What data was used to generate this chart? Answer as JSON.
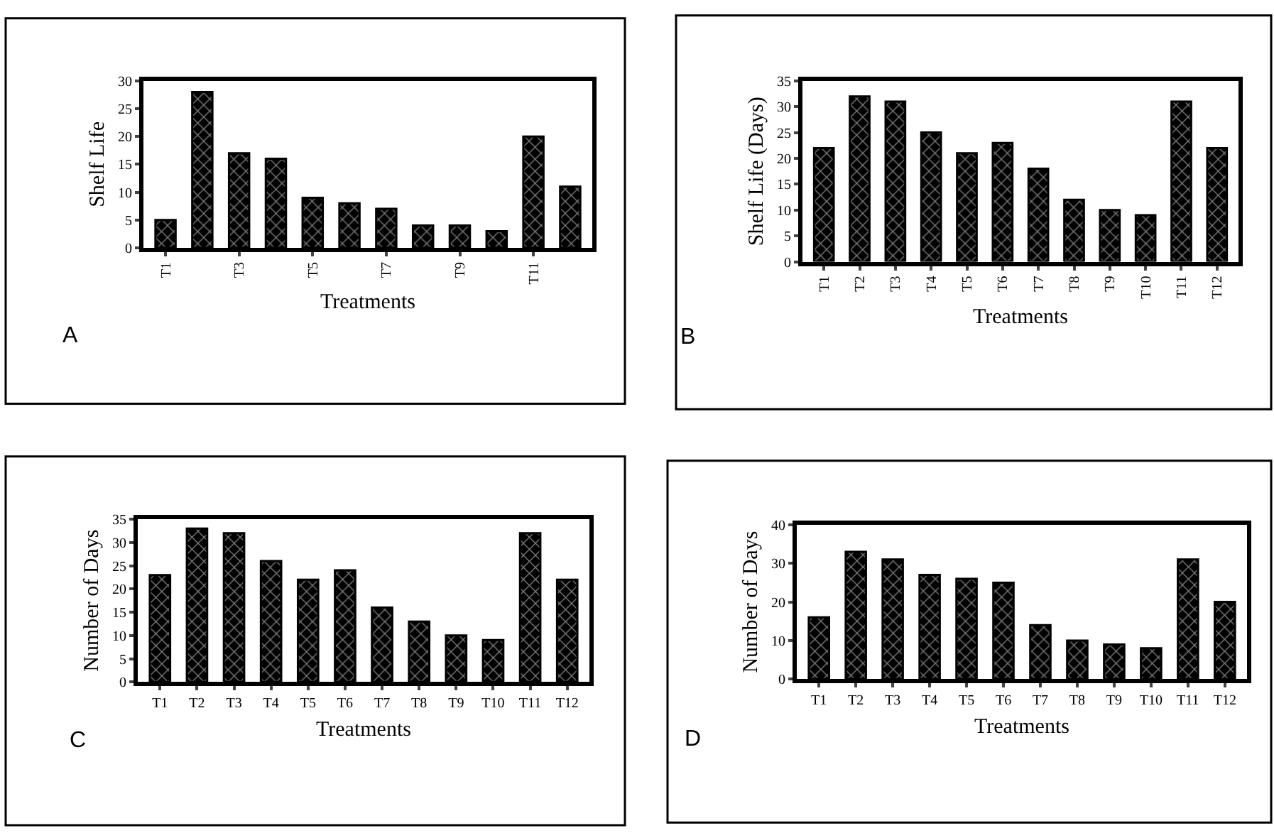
{
  "chart_data": [
    {
      "type": "bar",
      "ylabel": "Shelf Life",
      "xlabel": "Treatments",
      "annotations": [
        "A"
      ],
      "categories": [
        "T1",
        null,
        "T3",
        null,
        "T5",
        null,
        "T7",
        null,
        "T9",
        null,
        "T11",
        null
      ],
      "values": [
        5,
        28,
        17,
        16,
        9,
        8,
        7,
        4,
        4,
        3,
        20,
        11
      ],
      "color": "#000000",
      "ylim": [
        0,
        30
      ],
      "yticks": [
        0,
        5,
        10,
        15,
        20,
        25,
        30
      ]
    },
    {
      "type": "bar",
      "ylabel": "Shelf Life (Days)",
      "xlabel": "Treatments",
      "annotations": [
        "B"
      ],
      "categories": [
        "T1",
        "T2",
        "T3",
        "T4",
        "T5",
        "T6",
        "T7",
        "T8",
        "T9",
        "T10",
        "T11",
        "T12"
      ],
      "values": [
        22,
        32,
        31,
        25,
        21,
        23,
        18,
        12,
        10,
        9,
        31,
        22
      ],
      "color": "#000000",
      "ylim": [
        0,
        35
      ],
      "yticks": [
        0,
        5,
        10,
        15,
        20,
        25,
        30,
        35
      ]
    },
    {
      "type": "bar",
      "ylabel": "Number of Days",
      "xlabel": "Treatments",
      "annotations": [
        "C"
      ],
      "categories": [
        "T1",
        "T2",
        "T3",
        "T4",
        "T5",
        "T6",
        "T7",
        "T8",
        "T9",
        "T10",
        "T11",
        "T12"
      ],
      "values": [
        23,
        33,
        32,
        26,
        22,
        24,
        16,
        13,
        10,
        9,
        32,
        22
      ],
      "color": "#000000",
      "ylim": [
        0,
        35
      ],
      "yticks": [
        0,
        5,
        10,
        15,
        20,
        25,
        30,
        35
      ]
    },
    {
      "type": "bar",
      "ylabel": "Number of Days",
      "xlabel": "Treatments",
      "annotations": [
        "D"
      ],
      "categories": [
        "T1",
        "T2",
        "T3",
        "T4",
        "T5",
        "T6",
        "T7",
        "T8",
        "T9",
        "T10",
        "T11",
        "T12"
      ],
      "values": [
        16,
        33,
        31,
        27,
        26,
        25,
        14,
        10,
        9,
        8,
        31,
        20
      ],
      "color": "#000000",
      "ylim": [
        0,
        40
      ],
      "yticks": [
        0,
        10,
        20,
        30,
        40
      ]
    }
  ]
}
